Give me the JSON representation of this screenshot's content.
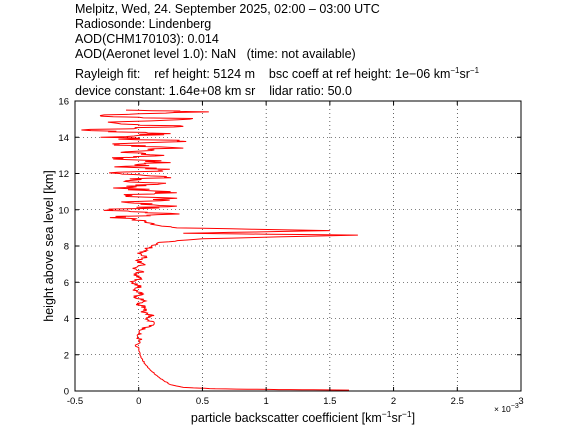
{
  "header": {
    "line1": "Melpitz, Wed, 24. September 2025, 02:00 – 03:00 UTC",
    "line2": "Radiosonde: Lindenberg",
    "line3": "AOD(CHM170103): 0.014",
    "line4_a": "AOD(Aeronet level 1.0): NaN",
    "line4_b": "(time: not available)",
    "line5_a": "Rayleigh fit:",
    "line5_b": "ref height: 5124 m",
    "line5_c": "bsc coeff at ref height: 1e−06 km",
    "line5_sup1": "−1",
    "line5_mid": "sr",
    "line5_sup2": "−1",
    "line6_a": "device constant: 1.64e+08 km sr",
    "line6_b": "lidar ratio: 50.0"
  },
  "chart_data": {
    "type": "line",
    "xlabel": "particle backscatter coefficient [km",
    "xlabel_sup1": "−1",
    "xlabel_mid": "sr",
    "xlabel_sup2": "−1",
    "xlabel_end": "]",
    "ylabel": "height above sea level [km]",
    "x_multiplier": "× 10",
    "x_multiplier_exp": "−3",
    "xlim": [
      -0.5,
      3.0
    ],
    "ylim": [
      0,
      16
    ],
    "xticks": [
      -0.5,
      0,
      0.5,
      1,
      1.5,
      2,
      2.5,
      3
    ],
    "xtick_labels": [
      "-0.5",
      "0",
      "0.5",
      "1",
      "1.5",
      "2",
      "2.5",
      "3"
    ],
    "yticks": [
      0,
      2,
      4,
      6,
      8,
      10,
      12,
      14,
      16
    ],
    "ytick_labels": [
      "0",
      "2",
      "4",
      "6",
      "8",
      "10",
      "12",
      "14",
      "16"
    ],
    "grid": true,
    "line_color": "#ff0000",
    "series": [
      {
        "points": [
          [
            1.65,
            0.05
          ],
          [
            1.1,
            0.08
          ],
          [
            0.6,
            0.12
          ],
          [
            0.35,
            0.2
          ],
          [
            0.25,
            0.35
          ],
          [
            0.2,
            0.55
          ],
          [
            0.15,
            0.8
          ],
          [
            0.1,
            1.1
          ],
          [
            0.06,
            1.4
          ],
          [
            0.03,
            1.7
          ],
          [
            0.01,
            2.0
          ],
          [
            0.0,
            2.4
          ],
          [
            0.0,
            2.8
          ],
          [
            -0.01,
            3.1
          ],
          [
            0.03,
            3.4
          ],
          [
            0.08,
            3.6
          ],
          [
            0.12,
            3.8
          ],
          [
            0.06,
            4.0
          ],
          [
            0.1,
            4.2
          ],
          [
            0.03,
            4.4
          ],
          [
            0.05,
            4.6
          ],
          [
            0.0,
            4.8
          ],
          [
            0.04,
            5.0
          ],
          [
            -0.02,
            5.2
          ],
          [
            0.03,
            5.4
          ],
          [
            -0.03,
            5.6
          ],
          [
            0.02,
            5.8
          ],
          [
            -0.05,
            6.0
          ],
          [
            0.02,
            6.2
          ],
          [
            -0.04,
            6.4
          ],
          [
            0.03,
            6.6
          ],
          [
            -0.03,
            6.8
          ],
          [
            0.04,
            7.0
          ],
          [
            -0.02,
            7.2
          ],
          [
            0.05,
            7.4
          ],
          [
            -0.01,
            7.6
          ],
          [
            0.06,
            7.8
          ],
          [
            0.1,
            8.0
          ],
          [
            0.16,
            8.2
          ],
          [
            0.5,
            8.4
          ],
          [
            1.72,
            8.6
          ],
          [
            0.35,
            8.7
          ],
          [
            1.5,
            8.85
          ],
          [
            0.3,
            9.0
          ],
          [
            0.1,
            9.2
          ],
          [
            0.05,
            9.4
          ],
          [
            -0.1,
            9.6
          ],
          [
            0.25,
            9.8
          ],
          [
            -0.2,
            10.0
          ],
          [
            0.3,
            10.2
          ],
          [
            -0.1,
            10.4
          ],
          [
            0.2,
            10.6
          ],
          [
            -0.05,
            10.8
          ],
          [
            0.25,
            11.0
          ],
          [
            -0.2,
            11.2
          ],
          [
            0.15,
            11.4
          ],
          [
            -0.1,
            11.6
          ],
          [
            0.2,
            11.8
          ],
          [
            -0.15,
            12.0
          ],
          [
            0.15,
            12.2
          ],
          [
            -0.1,
            12.4
          ],
          [
            0.25,
            12.6
          ],
          [
            -0.2,
            12.8
          ],
          [
            0.2,
            13.0
          ],
          [
            -0.1,
            13.2
          ],
          [
            0.35,
            13.4
          ],
          [
            -0.15,
            13.6
          ],
          [
            0.3,
            13.8
          ],
          [
            -0.3,
            14.0
          ],
          [
            0.25,
            14.2
          ],
          [
            -0.45,
            14.4
          ],
          [
            0.35,
            14.6
          ],
          [
            -0.2,
            14.8
          ],
          [
            0.4,
            15.0
          ],
          [
            -0.3,
            15.2
          ],
          [
            0.55,
            15.4
          ],
          [
            -0.1,
            15.5
          ]
        ]
      }
    ]
  }
}
